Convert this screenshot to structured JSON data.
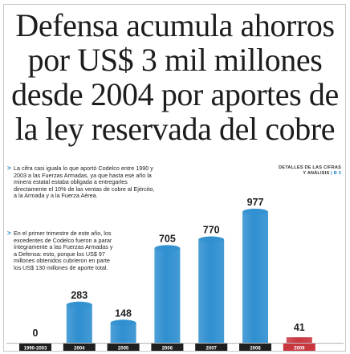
{
  "headline": {
    "lines": [
      "Defensa acumula ahorros",
      "por US$ 3 mil millones",
      "desde 2004 por aportes de",
      "la ley reservada del cobre"
    ]
  },
  "bullets": [
    {
      "arrow": ">",
      "lines": [
        "La cifra casi iguala lo que aportó Codelco entre 1990 y",
        "2003 a las Fuerzas Armadas, ya que hasta ese año la",
        "minera estatal estaba obligada a entregarles",
        "directamente el 10% de las ventas de cobre al Ejército,",
        "a la Armada y a la Fuerza Aérea."
      ]
    },
    {
      "arrow": ">",
      "lines": [
        "En el primer trimestre de este año, los",
        "excedentes de Codelco fueron a parar",
        "íntegramente a las Fuerzas Armadas y",
        "a Defensa: esto, porque los US$ 97",
        "millones obtenidos cubrieron en parte",
        "los US$ 130 millones de aporte total."
      ]
    }
  ],
  "detail_note": {
    "line1": "DETALLES DE LAS CIFRAS",
    "line2": "Y ANÁLISIS",
    "pages": "| B 3"
  },
  "colors": {
    "bar": "#2f8fd0",
    "bar_highlight": "#c8363e",
    "accent": "#1a86c7",
    "value_text": "#1f1f1f"
  },
  "chart_data": {
    "type": "bar",
    "categories": [
      "1990-2003",
      "2004",
      "2005",
      "2006",
      "2007",
      "2008",
      "2009"
    ],
    "values": [
      0,
      283,
      148,
      705,
      770,
      977,
      41
    ],
    "highlight_index": 6,
    "title": "",
    "xlabel": "",
    "ylabel": "",
    "ylim": [
      0,
      1000
    ]
  }
}
